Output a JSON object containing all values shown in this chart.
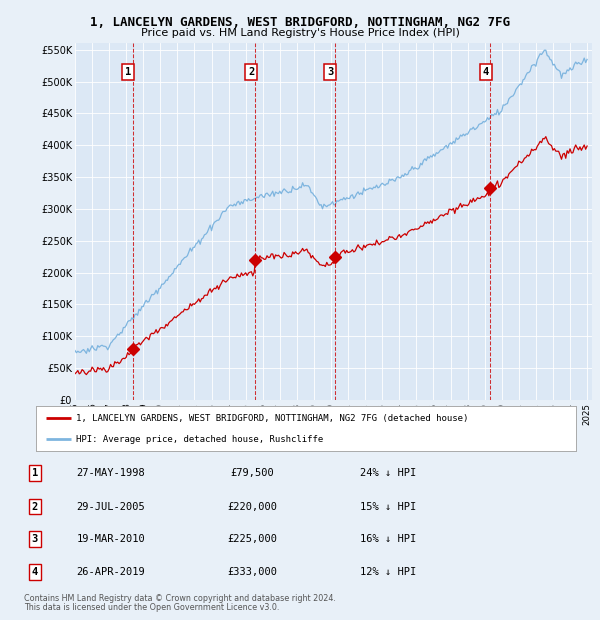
{
  "title": "1, LANCELYN GARDENS, WEST BRIDGFORD, NOTTINGHAM, NG2 7FG",
  "subtitle": "Price paid vs. HM Land Registry's House Price Index (HPI)",
  "legend_line1": "1, LANCELYN GARDENS, WEST BRIDGFORD, NOTTINGHAM, NG2 7FG (detached house)",
  "legend_line2": "HPI: Average price, detached house, Rushcliffe",
  "footer1": "Contains HM Land Registry data © Crown copyright and database right 2024.",
  "footer2": "This data is licensed under the Open Government Licence v3.0.",
  "transactions": [
    {
      "num": 1,
      "date": "27-MAY-1998",
      "price": 79500,
      "price_str": "£79,500",
      "pct": "24% ↓ HPI",
      "year": 1998.38
    },
    {
      "num": 2,
      "date": "29-JUL-2005",
      "price": 220000,
      "price_str": "£220,000",
      "pct": "15% ↓ HPI",
      "year": 2005.57
    },
    {
      "num": 3,
      "date": "19-MAR-2010",
      "price": 225000,
      "price_str": "£225,000",
      "pct": "16% ↓ HPI",
      "year": 2010.21
    },
    {
      "num": 4,
      "date": "26-APR-2019",
      "price": 333000,
      "price_str": "£333,000",
      "pct": "12% ↓ HPI",
      "year": 2019.32
    }
  ],
  "ylim": [
    0,
    560000
  ],
  "yticks": [
    0,
    50000,
    100000,
    150000,
    200000,
    250000,
    300000,
    350000,
    400000,
    450000,
    500000,
    550000
  ],
  "ytick_labels": [
    "£0",
    "£50K",
    "£100K",
    "£150K",
    "£200K",
    "£250K",
    "£300K",
    "£350K",
    "£400K",
    "£450K",
    "£500K",
    "£550K"
  ],
  "hpi_color": "#7eb5df",
  "price_color": "#cc0000",
  "bg_color": "#e8f0f8",
  "plot_bg": "#dce8f5",
  "grid_color": "#ffffff"
}
